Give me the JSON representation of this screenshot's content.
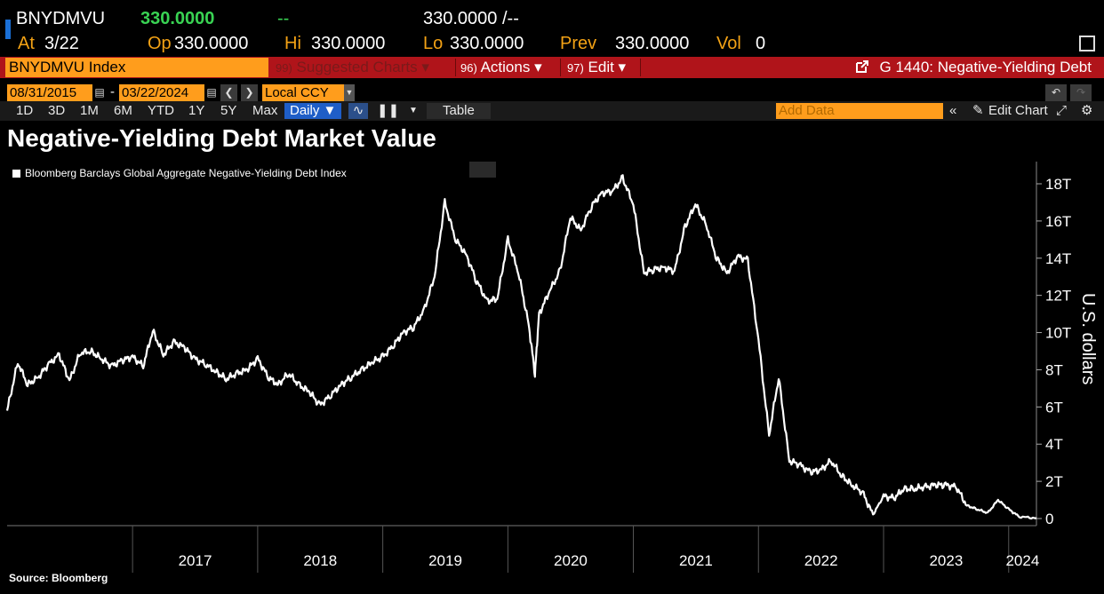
{
  "quote": {
    "ticker": "BNYDMVU",
    "last": "330.0000",
    "change": "--",
    "bid_ask": "330.0000 /--"
  },
  "stats": {
    "at_label": "At",
    "at_value": "3/22",
    "op_label": "Op",
    "op_value": "330.0000",
    "hi_label": "Hi",
    "hi_value": "330.0000",
    "lo_label": "Lo",
    "lo_value": "330.0000",
    "prev_label": "Prev",
    "prev_value": "330.0000",
    "vol_label": "Vol",
    "vol_value": "0"
  },
  "command_bar": {
    "security": "BNYDMVU Index",
    "suggested_num": "99)",
    "suggested": "Suggested Charts ▾",
    "actions_num": "96)",
    "actions": "Actions ▾",
    "edit_num": "97)",
    "edit": "Edit ▾",
    "chart_title": "G 1440: Negative-Yielding Debt"
  },
  "date_range": {
    "start": "08/31/2015",
    "end": "03/22/2024",
    "currency": "Local CCY"
  },
  "range_buttons": [
    "1D",
    "3D",
    "1M",
    "6M",
    "YTD",
    "1Y",
    "5Y",
    "Max"
  ],
  "period": "Daily ▼",
  "table_label": "Table",
  "add_data_placeholder": "Add Data",
  "edit_chart_label": "Edit Chart",
  "colors": {
    "bloomberg_orange": "#ff9d1c",
    "bar_red": "#b0141a",
    "last_green": "#39d353",
    "line": "#ffffff"
  },
  "chart_data": {
    "type": "line",
    "title": "Negative-Yielding Debt Market Value",
    "legend": "Bloomberg Barclays Global Aggregate Negative-Yielding Debt Index",
    "ylabel": "U.S. dollars",
    "y_ticks": [
      "0",
      "2T",
      "4T",
      "6T",
      "8T",
      "10T",
      "12T",
      "14T",
      "16T",
      "18T"
    ],
    "ylim": [
      0,
      19
    ],
    "x_ticks": [
      "2017",
      "2018",
      "2019",
      "2020",
      "2021",
      "2022",
      "2023",
      "2024"
    ],
    "xlim": [
      "2016-01-01",
      "2024-03-22"
    ],
    "source": "Source: Bloomberg",
    "series": [
      {
        "unit": "trillion USD",
        "x": [
          "2016-01-01",
          "2016-02-01",
          "2016-03-01",
          "2016-04-01",
          "2016-05-01",
          "2016-06-01",
          "2016-07-01",
          "2016-08-01",
          "2016-09-01",
          "2016-10-01",
          "2016-11-01",
          "2016-12-01",
          "2017-01-01",
          "2017-02-01",
          "2017-03-01",
          "2017-04-01",
          "2017-05-01",
          "2017-06-01",
          "2017-07-01",
          "2017-08-01",
          "2017-09-01",
          "2017-10-01",
          "2017-11-01",
          "2017-12-01",
          "2018-01-01",
          "2018-02-01",
          "2018-03-01",
          "2018-04-01",
          "2018-05-01",
          "2018-06-01",
          "2018-07-01",
          "2018-08-01",
          "2018-09-01",
          "2018-10-01",
          "2018-11-01",
          "2018-12-01",
          "2019-01-01",
          "2019-02-01",
          "2019-03-01",
          "2019-04-01",
          "2019-05-01",
          "2019-06-01",
          "2019-07-01",
          "2019-08-01",
          "2019-09-01",
          "2019-10-01",
          "2019-11-01",
          "2019-12-01",
          "2020-01-01",
          "2020-02-01",
          "2020-03-01",
          "2020-03-20",
          "2020-04-01",
          "2020-05-01",
          "2020-06-01",
          "2020-07-01",
          "2020-08-01",
          "2020-09-01",
          "2020-10-01",
          "2020-11-01",
          "2020-12-01",
          "2021-01-01",
          "2021-02-01",
          "2021-03-01",
          "2021-04-01",
          "2021-05-01",
          "2021-06-01",
          "2021-07-01",
          "2021-08-01",
          "2021-09-01",
          "2021-10-01",
          "2021-11-01",
          "2021-12-01",
          "2022-01-01",
          "2022-02-01",
          "2022-03-01",
          "2022-04-01",
          "2022-05-01",
          "2022-06-01",
          "2022-07-01",
          "2022-08-01",
          "2022-09-01",
          "2022-10-01",
          "2022-11-01",
          "2022-12-01",
          "2023-01-01",
          "2023-02-01",
          "2023-03-01",
          "2023-04-01",
          "2023-05-01",
          "2023-06-01",
          "2023-07-01",
          "2023-08-01",
          "2023-09-01",
          "2023-10-01",
          "2023-11-01",
          "2023-12-01",
          "2024-01-01",
          "2024-02-01",
          "2024-03-22"
        ],
        "values": [
          5.8,
          8.4,
          7.2,
          7.6,
          8.3,
          8.8,
          7.4,
          8.9,
          9.0,
          8.6,
          8.2,
          8.5,
          8.7,
          8.2,
          10.1,
          8.8,
          9.5,
          9.2,
          8.6,
          8.3,
          7.9,
          7.5,
          7.8,
          8.0,
          8.6,
          7.6,
          7.2,
          7.8,
          7.2,
          6.8,
          6.1,
          6.6,
          7.2,
          7.6,
          8.0,
          8.4,
          8.7,
          9.3,
          10.0,
          10.3,
          11.2,
          13.0,
          17.0,
          15.0,
          14.2,
          12.8,
          11.7,
          11.8,
          15.0,
          13.2,
          10.5,
          7.8,
          11.0,
          12.2,
          13.3,
          16.2,
          15.5,
          16.8,
          17.5,
          17.6,
          18.3,
          16.9,
          13.2,
          13.4,
          13.5,
          13.3,
          15.7,
          16.9,
          15.8,
          14.0,
          13.2,
          14.1,
          13.9,
          9.6,
          4.5,
          7.6,
          3.1,
          2.9,
          2.5,
          2.6,
          3.1,
          2.3,
          1.8,
          1.4,
          0.2,
          1.2,
          1.1,
          1.6,
          1.6,
          1.7,
          1.8,
          1.8,
          1.7,
          0.7,
          0.5,
          0.3,
          1.0,
          0.5,
          0.1,
          0.02
        ]
      }
    ]
  }
}
